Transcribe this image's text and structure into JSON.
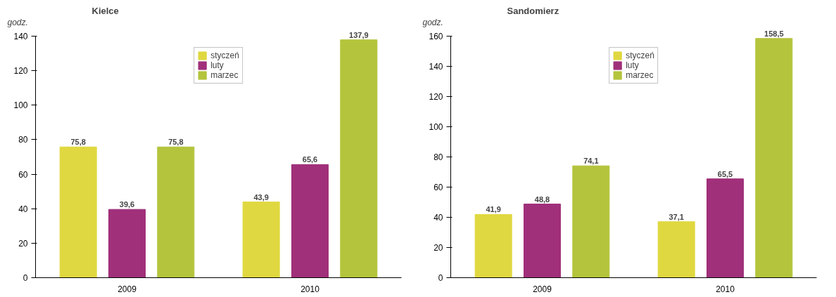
{
  "chart_data": [
    {
      "type": "bar",
      "title": "Kielce",
      "ylabel": "godz.",
      "categories": [
        "2009",
        "2010"
      ],
      "ylim": [
        0,
        140
      ],
      "yticks": [
        0,
        20,
        40,
        60,
        80,
        100,
        120,
        140
      ],
      "grid": false,
      "legend": "top",
      "series": [
        {
          "name": "styczeń",
          "color": "#e0d840",
          "values": [
            75.8,
            43.9
          ],
          "value_labels": [
            "75,8",
            "43,9"
          ]
        },
        {
          "name": "luty",
          "color": "#a0307a",
          "values": [
            39.6,
            65.6
          ],
          "value_labels": [
            "39,6",
            "65,6"
          ]
        },
        {
          "name": "marzec",
          "color": "#b4c43c",
          "values": [
            75.8,
            137.9
          ],
          "value_labels": [
            "75,8",
            "137,9"
          ]
        }
      ]
    },
    {
      "type": "bar",
      "title": "Sandomierz",
      "ylabel": "godz.",
      "categories": [
        "2009",
        "2010"
      ],
      "ylim": [
        0,
        160
      ],
      "yticks": [
        0,
        20,
        40,
        60,
        80,
        100,
        120,
        140,
        160
      ],
      "grid": false,
      "legend": "top",
      "series": [
        {
          "name": "styczeń",
          "color": "#e0d840",
          "values": [
            41.9,
            37.1
          ],
          "value_labels": [
            "41,9",
            "37,1"
          ]
        },
        {
          "name": "luty",
          "color": "#a0307a",
          "values": [
            48.8,
            65.5
          ],
          "value_labels": [
            "48,8",
            "65,5"
          ]
        },
        {
          "name": "marzec",
          "color": "#b4c43c",
          "values": [
            74.1,
            158.5
          ],
          "value_labels": [
            "74,1",
            "158,5"
          ]
        }
      ]
    }
  ]
}
